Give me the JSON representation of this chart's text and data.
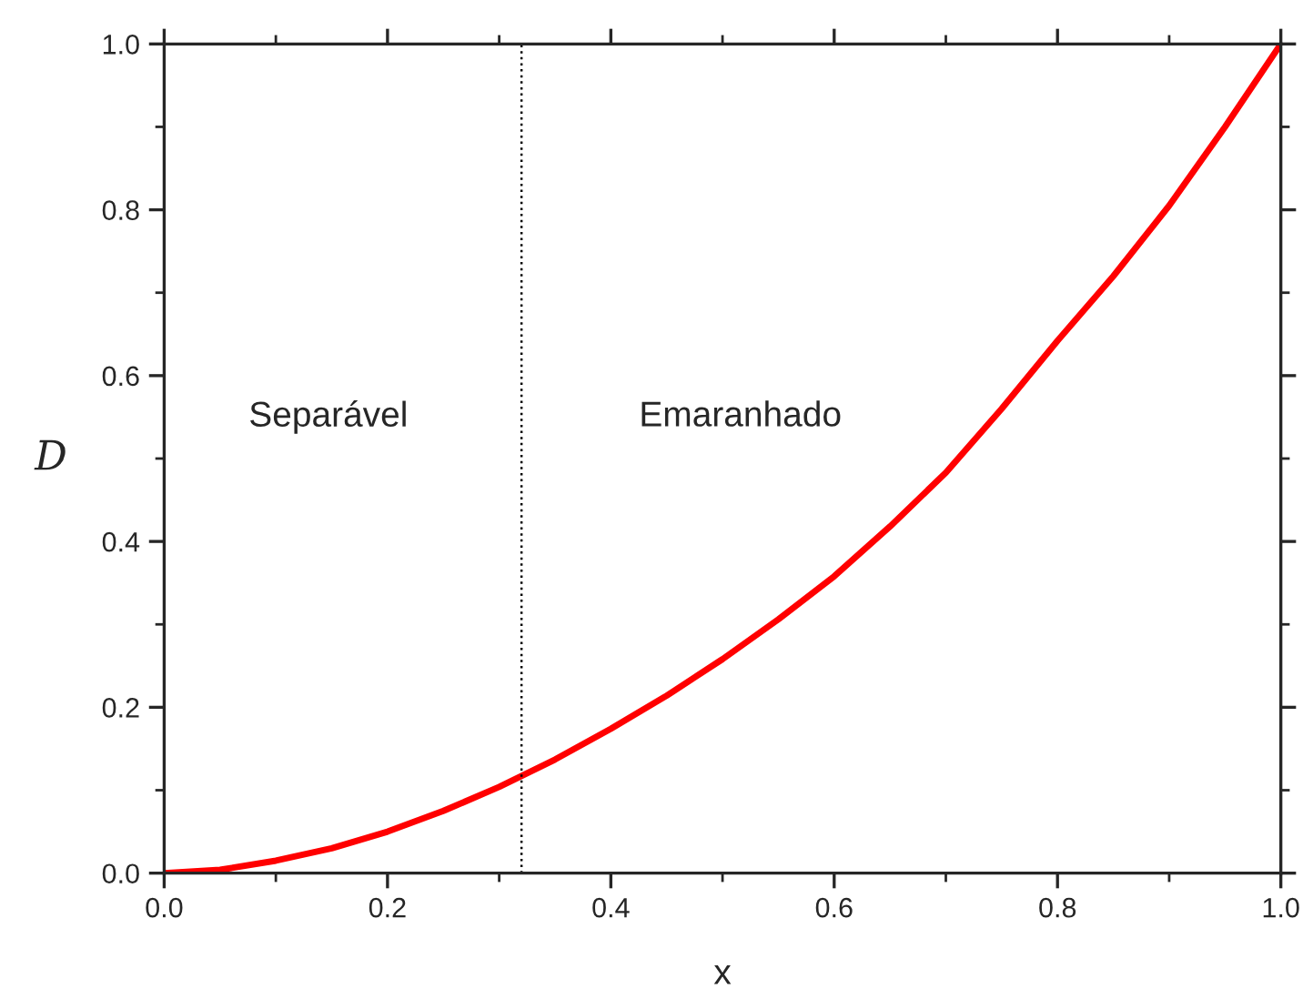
{
  "chart_data": {
    "type": "line",
    "xlabel": "x",
    "ylabel": "D",
    "x": [
      0,
      0.05,
      0.1,
      0.15,
      0.2,
      0.25,
      0.3,
      0.35,
      0.4,
      0.45,
      0.5,
      0.55,
      0.6,
      0.65,
      0.7,
      0.75,
      0.8,
      0.85,
      0.9,
      0.95,
      1.0
    ],
    "series": [
      {
        "color": "#ff0000",
        "values": [
          0,
          0.004,
          0.015,
          0.03,
          0.05,
          0.075,
          0.104,
          0.137,
          0.174,
          0.214,
          0.258,
          0.306,
          0.358,
          0.418,
          0.483,
          0.56,
          0.642,
          0.72,
          0.805,
          0.9,
          1.0
        ]
      }
    ],
    "xlim": [
      0,
      1
    ],
    "ylim": [
      0,
      1
    ],
    "xticks": [
      {
        "value": 0,
        "label": "0.0"
      },
      0.2,
      0.4,
      0.6,
      0.8,
      {
        "value": 1,
        "label": "1.0"
      }
    ],
    "yticks": [
      {
        "value": 0,
        "label": "0.0"
      },
      0.2,
      0.4,
      0.6,
      0.8,
      {
        "value": 1,
        "label": "1.0"
      }
    ],
    "ref_lines": [
      {
        "axis": "x",
        "value": 0.32,
        "color": "#000000",
        "line_style": "dotted"
      }
    ],
    "annotations": [
      "Separável",
      "Emaranhado"
    ],
    "grid": false,
    "legend": false,
    "marker": "none",
    "line_style": "solid"
  }
}
